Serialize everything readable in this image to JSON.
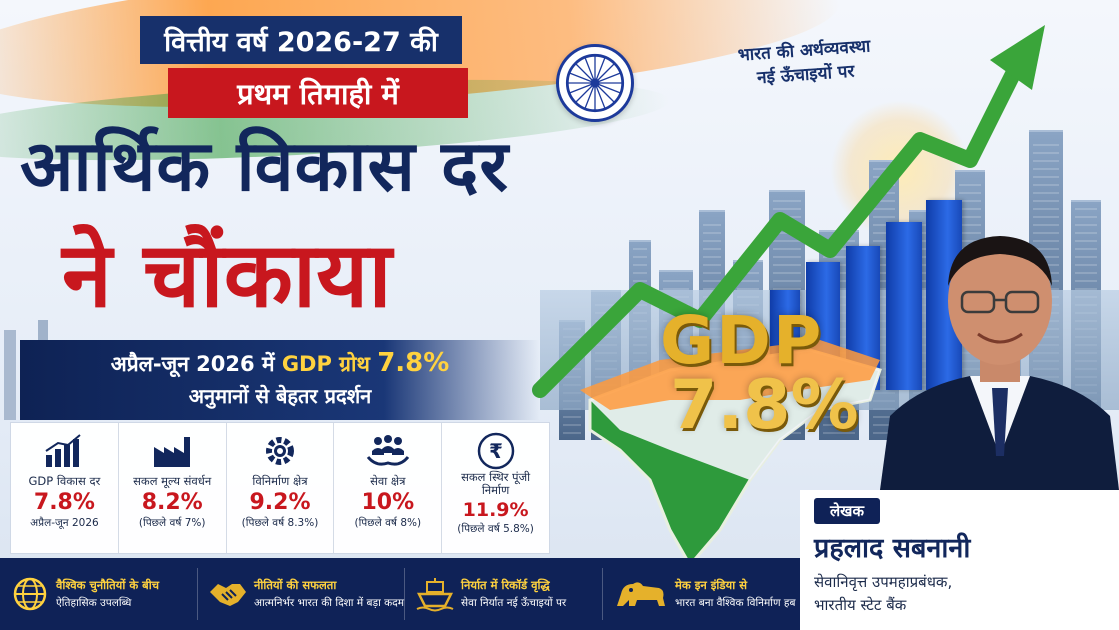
{
  "title": {
    "line1": "वित्तीय वर्ष 2026-27 की",
    "line2": "प्रथम तिमाही में",
    "line3": "आर्थिक विकास दर",
    "line4": "ने चौंकाया"
  },
  "subtitle": {
    "part1": "अप्रैल-जून 2026 में ",
    "part2": "GDP ग्रोथ ",
    "part3": "7.8%",
    "line2": "अनुमानों से बेहतर प्रदर्शन"
  },
  "tagline": {
    "line1": "भारत की अर्थव्यवस्था",
    "line2": "नई ऊँचाइयों पर"
  },
  "hero": {
    "label": "GDP",
    "value": "7.8%"
  },
  "stats": [
    {
      "icon": "bar-chart-icon",
      "label": "GDP विकास दर",
      "value": "7.8%",
      "note": "अप्रैल-जून 2026"
    },
    {
      "icon": "factory-icon",
      "label": "सकल मूल्य संवर्धन",
      "value": "8.2%",
      "note": "(पिछले वर्ष 7%)"
    },
    {
      "icon": "gear-icon",
      "label": "विनिर्माण क्षेत्र",
      "value": "9.2%",
      "note": "(पिछले वर्ष 8.3%)"
    },
    {
      "icon": "people-hands-icon",
      "label": "सेवा क्षेत्र",
      "value": "10%",
      "note": "(पिछले वर्ष 8%)"
    },
    {
      "icon": "rupee-icon",
      "label": "सकल स्थिर पूंजी",
      "label2": "निर्माण",
      "value": "11.9%",
      "note": "(पिछले वर्ष 5.8%)"
    }
  ],
  "bottom": [
    {
      "icon": "globe-icon",
      "title": "वैश्विक चुनौतियों के बीच",
      "text": "ऐतिहासिक उपलब्धि"
    },
    {
      "icon": "handshake-icon",
      "title": "नीतियों की सफलता",
      "text": "आत्मनिर्भर भारत की दिशा में बड़ा कदम"
    },
    {
      "icon": "ship-icon",
      "title": "निर्यात में रिकॉर्ड वृद्धि",
      "text": "सेवा निर्यात नई ऊँचाइयों पर"
    },
    {
      "icon": "lion-icon",
      "title": "मेक इन इंडिया से",
      "text": "भारत बना वैश्विक विनिर्माण हब"
    }
  ],
  "author": {
    "tag": "लेखक",
    "name": "प्रहलाद सबनानी",
    "role1": "सेवानिवृत्त उपमहाप्रबंधक,",
    "role2": "भारतीय स्टेट बैंक"
  },
  "colors": {
    "navy": "#12275c",
    "red": "#c8171e",
    "gold": "#e5b12b",
    "saffron": "#ff9933",
    "green": "#2f9b3a"
  }
}
